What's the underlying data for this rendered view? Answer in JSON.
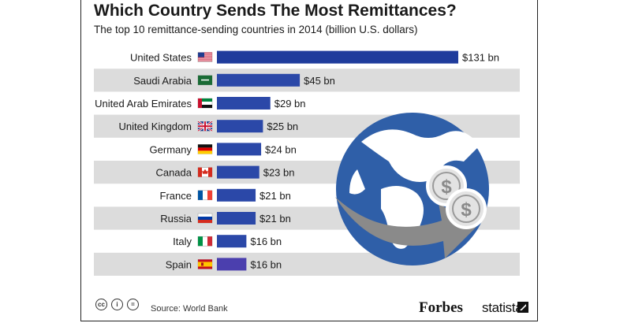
{
  "chart_data": {
    "type": "bar",
    "orientation": "horizontal",
    "title": "Which Country Sends The Most Remittances?",
    "subtitle": "The top 10 remittance-sending countries in 2014 (billion U.S. dollars)",
    "categories": [
      "United States",
      "Saudi Arabia",
      "United Arab Emirates",
      "United Kingdom",
      "Germany",
      "Canada",
      "France",
      "Russia",
      "Italy",
      "Spain"
    ],
    "values": [
      131,
      45,
      29,
      25,
      24,
      23,
      21,
      21,
      16,
      16
    ],
    "value_labels": [
      "$131 bn",
      "$45 bn",
      "$29 bn",
      "$25 bn",
      "$24 bn",
      "$23 bn",
      "$21 bn",
      "$21 bn",
      "$16 bn",
      "$16 bn"
    ],
    "xlim": [
      0,
      131
    ],
    "grid": false,
    "legend": "none",
    "colors": {
      "bar": "#2b48a8",
      "bar_top": "#1f3c9c",
      "bar_last": "#4b3fae",
      "stripe": "#dcdcdc"
    }
  },
  "footer": {
    "source": "Source: World Bank",
    "brand_forbes": "Forbes",
    "brand_statista": "statista",
    "license_icons": [
      "cc",
      "i",
      "="
    ]
  },
  "illustration": {
    "icons": [
      "globe-icon",
      "arrow-icon",
      "dollar-coin-icon",
      "dollar-coin-icon"
    ]
  }
}
